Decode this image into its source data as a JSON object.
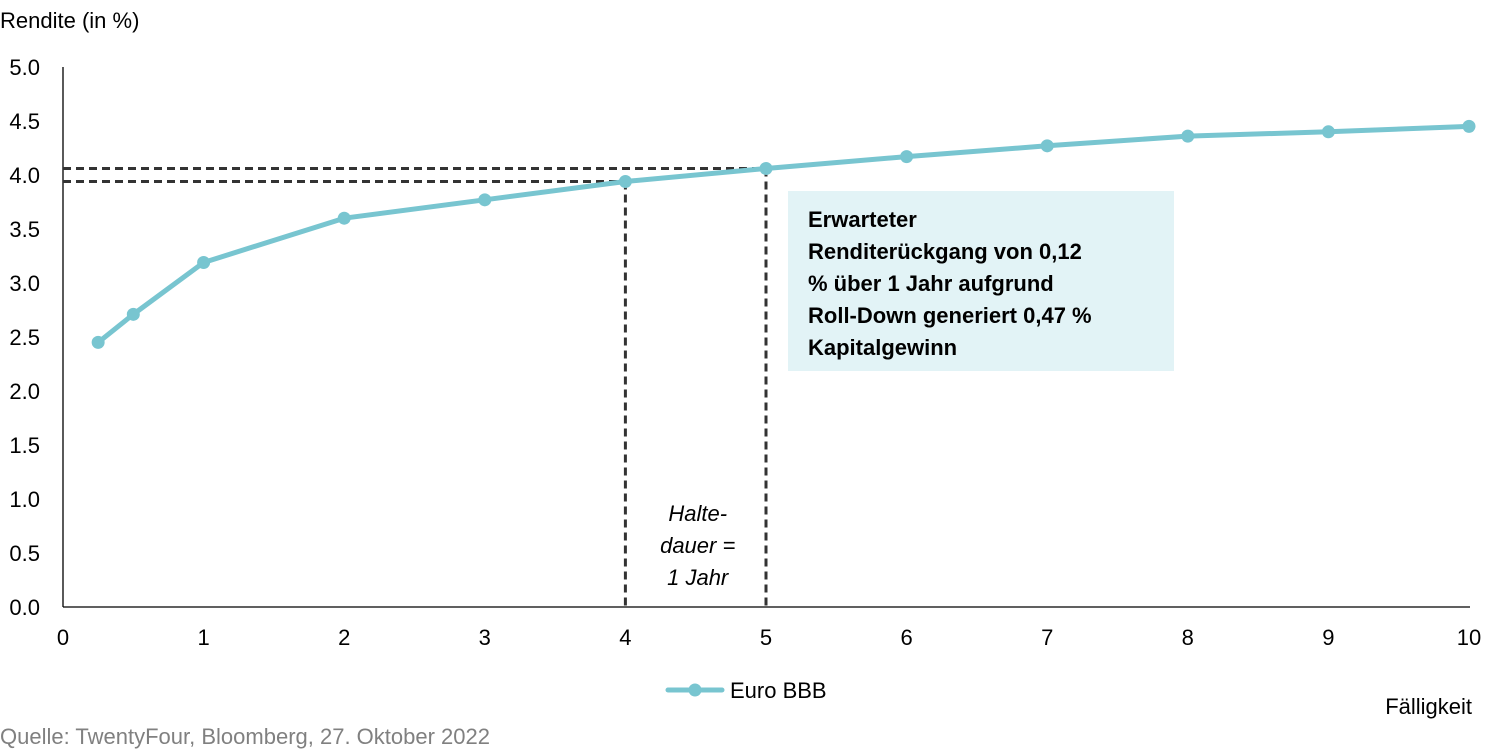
{
  "chart_data": {
    "type": "line",
    "ylabel": "Rendite (in %)",
    "xlabel": "Fälligkeit",
    "xlim": [
      0,
      10
    ],
    "ylim": [
      0,
      5
    ],
    "x_ticks": [
      0,
      1,
      2,
      3,
      4,
      5,
      6,
      7,
      8,
      9,
      10
    ],
    "y_ticks": [
      "0.0",
      "0.5",
      "1.0",
      "1.5",
      "2.0",
      "2.5",
      "3.0",
      "3.5",
      "4.0",
      "4.5",
      "5.0"
    ],
    "grid": false,
    "legend_position": "bottom-center",
    "series": [
      {
        "name": "Euro BBB",
        "color": "#78C5D0",
        "x": [
          0.25,
          0.5,
          1,
          2,
          3,
          4,
          5,
          6,
          7,
          8,
          9,
          10
        ],
        "y": [
          2.45,
          2.71,
          3.19,
          3.6,
          3.77,
          3.94,
          4.06,
          4.17,
          4.27,
          4.36,
          4.4,
          4.45
        ]
      }
    ],
    "reference_lines": [
      {
        "x": 4,
        "y": 3.94
      },
      {
        "x": 5,
        "y": 4.06
      }
    ],
    "annotations": {
      "box_lines": [
        "Erwarteter",
        "Renditerückgang von 0,12",
        "% über 1 Jahr aufgrund",
        "Roll-Down generiert 0,47 %",
        "Kapitalgewinn"
      ],
      "box_color": "#E2F3F6",
      "holding_lines": [
        "Halte-",
        "dauer =",
        "1 Jahr"
      ]
    },
    "source": "Quelle: TwentyFour, Bloomberg, 27. Oktober 2022"
  }
}
